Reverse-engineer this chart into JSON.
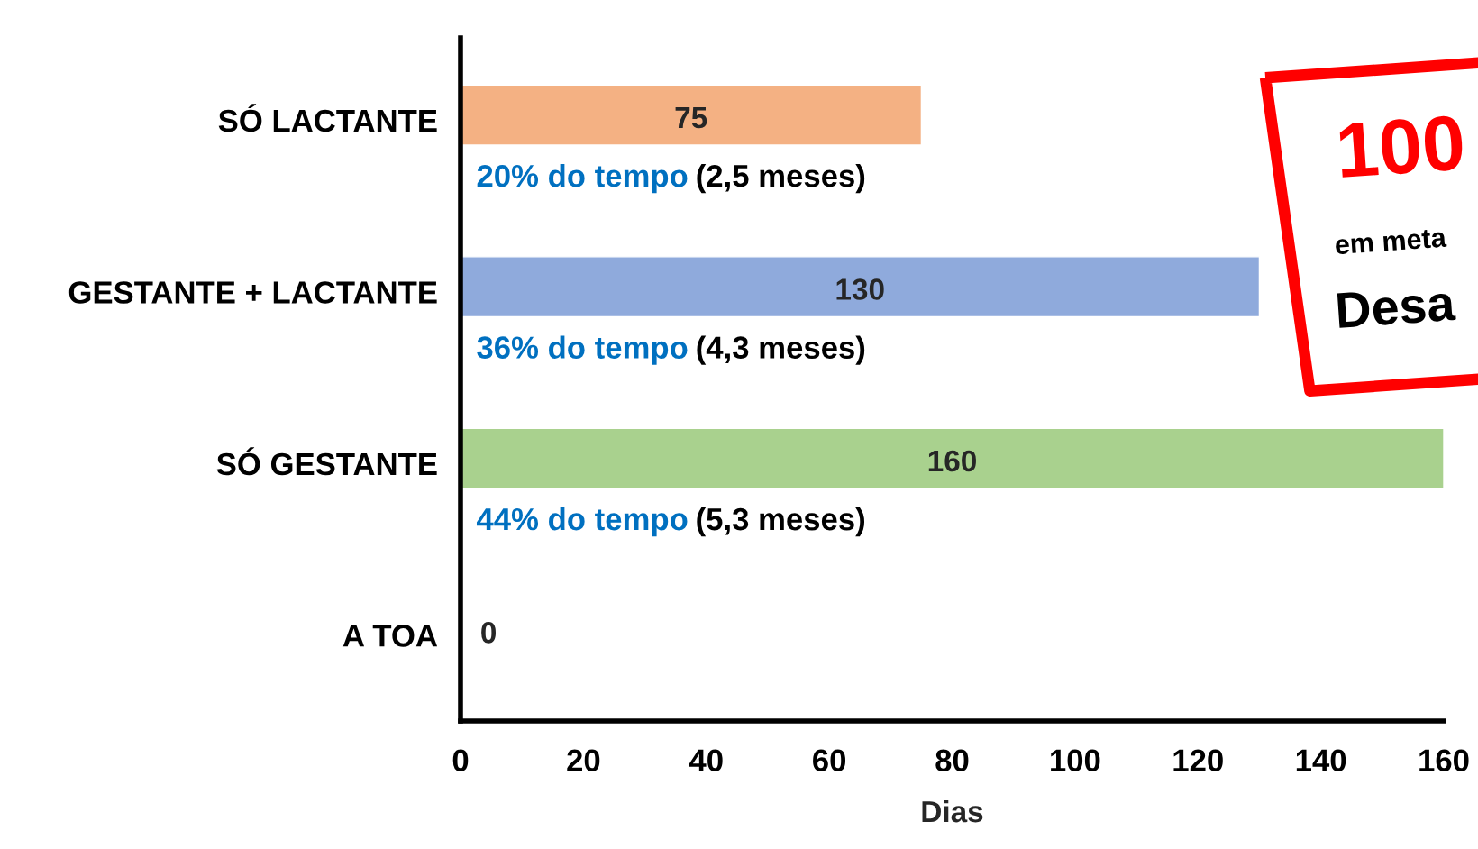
{
  "chart_data": {
    "type": "bar",
    "orientation": "horizontal",
    "xlabel": "Dias",
    "categories": [
      "SÓ LACTANTE",
      "GESTANTE + LACTANTE",
      "SÓ GESTANTE",
      "A TOA"
    ],
    "values": [
      75,
      130,
      160,
      0
    ],
    "colors": [
      "#f4b183",
      "#8faadc",
      "#a9d18e",
      "#ffffff"
    ],
    "xlim": [
      0,
      160
    ],
    "xticks": [
      0,
      20,
      40,
      60,
      80,
      100,
      120,
      140,
      160
    ],
    "data_labels": true,
    "grid": false,
    "legend": false,
    "annotations": [
      "20% do tempo",
      "(2,5 meses)",
      "36% do tempo",
      "(4,3 meses)",
      "44% do tempo",
      "(5,3 meses)",
      "100",
      "em meta",
      "Desa"
    ]
  }
}
